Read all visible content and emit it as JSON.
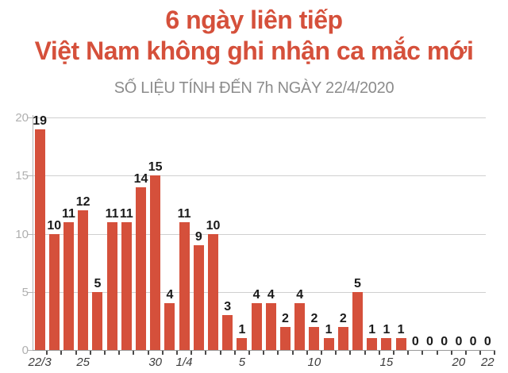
{
  "header": {
    "title_line1": "6 ngày liên tiếp",
    "title_line2": "Việt Nam không ghi nhận ca mắc mới",
    "subtitle": "SỐ LIỆU TÍNH ĐẾN 7h NGÀY 22/4/2020",
    "title_color": "#d5503b",
    "subtitle_color": "#8c8c8c"
  },
  "chart_data": {
    "type": "bar",
    "title": "6 ngày liên tiếp Việt Nam không ghi nhận ca mắc mới",
    "subtitle": "SỐ LIỆU TÍNH ĐẾN 7h NGÀY 22/4/2020",
    "categories": [
      "22/3",
      "23/3",
      "24/3",
      "25/3",
      "26/3",
      "27/3",
      "28/3",
      "29/3",
      "30/3",
      "31/3",
      "1/4",
      "2/4",
      "3/4",
      "4/4",
      "5/4",
      "6/4",
      "7/4",
      "8/4",
      "9/4",
      "10/4",
      "11/4",
      "12/4",
      "13/4",
      "14/4",
      "15/4",
      "16/4",
      "17/4",
      "18/4",
      "19/4",
      "20/4",
      "21/4",
      "22/4"
    ],
    "values": [
      19,
      10,
      11,
      12,
      5,
      11,
      11,
      14,
      15,
      4,
      11,
      9,
      10,
      3,
      1,
      4,
      4,
      2,
      4,
      2,
      1,
      2,
      5,
      1,
      1,
      1,
      0,
      0,
      0,
      0,
      0,
      0
    ],
    "bar_color": "#d5503b",
    "value_label_color": "#1a1a1a",
    "ylabel": "",
    "xlabel": "",
    "ylim": [
      0,
      20
    ],
    "yticks": [
      0,
      5,
      10,
      15,
      20
    ],
    "xtick_labels": [
      {
        "index": 0,
        "label": "22/3"
      },
      {
        "index": 3,
        "label": "25"
      },
      {
        "index": 8,
        "label": "30"
      },
      {
        "index": 10,
        "label": "1/4"
      },
      {
        "index": 14,
        "label": "5"
      },
      {
        "index": 19,
        "label": "10"
      },
      {
        "index": 24,
        "label": "15"
      },
      {
        "index": 29,
        "label": "20"
      },
      {
        "index": 31,
        "label": "22"
      }
    ],
    "grid": true,
    "legend": false
  }
}
